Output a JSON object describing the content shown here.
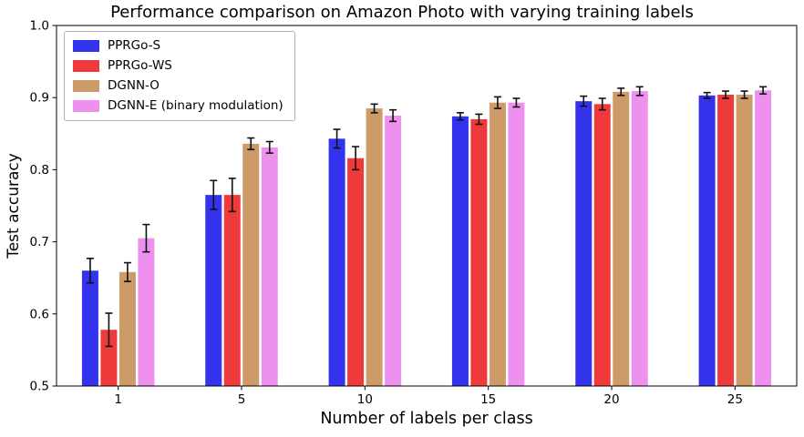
{
  "chart_data": {
    "type": "bar",
    "title": "Performance comparison on Amazon Photo with varying training labels",
    "xlabel": "Number of labels per class",
    "ylabel": "Test accuracy",
    "categories": [
      "1",
      "5",
      "10",
      "15",
      "20",
      "25"
    ],
    "ylim": [
      0.5,
      1.0
    ],
    "yticks": [
      0.5,
      0.6,
      0.7,
      0.8,
      0.9,
      1.0
    ],
    "grid": false,
    "legend_position": "upper left",
    "error_bar_color": "#111111",
    "axis_color": "#000000",
    "series": [
      {
        "name": "PPRGo-S",
        "color": "#3333ee",
        "values": [
          0.66,
          0.765,
          0.843,
          0.874,
          0.895,
          0.903
        ],
        "errors": [
          0.017,
          0.02,
          0.013,
          0.005,
          0.007,
          0.004
        ]
      },
      {
        "name": "PPRGo-WS",
        "color": "#ee3a3a",
        "values": [
          0.578,
          0.765,
          0.816,
          0.87,
          0.891,
          0.904
        ],
        "errors": [
          0.023,
          0.023,
          0.016,
          0.007,
          0.008,
          0.005
        ]
      },
      {
        "name": "DGNN-O",
        "color": "#cd9b68",
        "values": [
          0.658,
          0.836,
          0.885,
          0.893,
          0.908,
          0.904
        ],
        "errors": [
          0.013,
          0.008,
          0.006,
          0.008,
          0.005,
          0.005
        ]
      },
      {
        "name": "DGNN-E (binary modulation)",
        "color": "#ee90ee",
        "values": [
          0.705,
          0.831,
          0.875,
          0.893,
          0.909,
          0.91
        ],
        "errors": [
          0.019,
          0.008,
          0.008,
          0.006,
          0.006,
          0.005
        ]
      }
    ]
  }
}
